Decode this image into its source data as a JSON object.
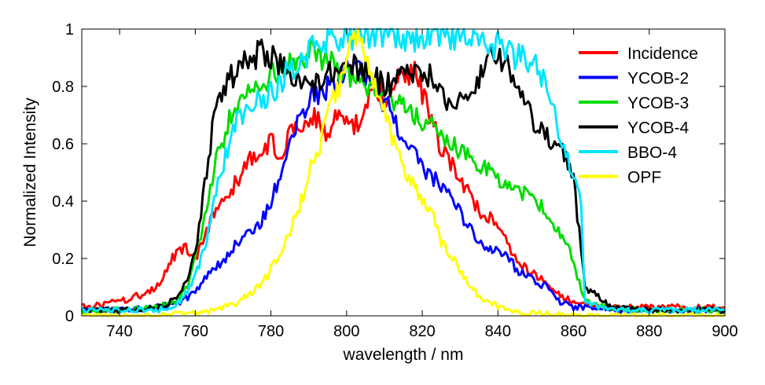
{
  "chart_data": {
    "type": "line",
    "title": "",
    "xlabel": "wavelength / nm",
    "ylabel": "Normalized Intensity",
    "xlim": [
      730,
      900
    ],
    "ylim": [
      0,
      1
    ],
    "x_ticks": [
      740,
      760,
      780,
      800,
      820,
      840,
      860,
      880,
      900
    ],
    "y_ticks": [
      0,
      0.2,
      0.4,
      0.6,
      0.8,
      1
    ],
    "y_tick_labels": [
      "0",
      "0.2",
      "0.4",
      "0.6",
      "0.8",
      "1"
    ],
    "grid": false,
    "legend_position": "top-right",
    "series": [
      {
        "name": "Incidence",
        "color": "#ff0000",
        "x": [
          730,
          735,
          740,
          745,
          750,
          753,
          755,
          757,
          760,
          763,
          765,
          768,
          770,
          773,
          775,
          778,
          780,
          783,
          785,
          788,
          790,
          793,
          795,
          798,
          800,
          803,
          805,
          808,
          810,
          813,
          815,
          818,
          820,
          823,
          825,
          828,
          830,
          833,
          835,
          838,
          840,
          843,
          845,
          848,
          850,
          853,
          855,
          858,
          860,
          863,
          865,
          870,
          880,
          890,
          900
        ],
        "y": [
          0.03,
          0.04,
          0.05,
          0.07,
          0.1,
          0.18,
          0.22,
          0.24,
          0.2,
          0.3,
          0.36,
          0.4,
          0.45,
          0.52,
          0.56,
          0.58,
          0.62,
          0.55,
          0.64,
          0.66,
          0.7,
          0.68,
          0.62,
          0.72,
          0.66,
          0.68,
          0.74,
          0.8,
          0.76,
          0.82,
          0.86,
          0.84,
          0.78,
          0.66,
          0.58,
          0.52,
          0.48,
          0.42,
          0.36,
          0.34,
          0.3,
          0.24,
          0.2,
          0.16,
          0.14,
          0.12,
          0.08,
          0.06,
          0.05,
          0.04,
          0.03,
          0.03,
          0.03,
          0.03,
          0.03
        ]
      },
      {
        "name": "YCOB-2",
        "color": "#0000ff",
        "x": [
          730,
          740,
          750,
          755,
          760,
          763,
          765,
          768,
          770,
          773,
          775,
          778,
          780,
          783,
          785,
          788,
          790,
          793,
          795,
          798,
          800,
          803,
          805,
          808,
          810,
          813,
          815,
          818,
          820,
          823,
          825,
          828,
          830,
          833,
          835,
          838,
          840,
          843,
          845,
          848,
          850,
          853,
          855,
          858,
          860,
          865,
          870,
          880,
          890,
          900
        ],
        "y": [
          0.02,
          0.02,
          0.03,
          0.04,
          0.08,
          0.14,
          0.16,
          0.2,
          0.24,
          0.28,
          0.3,
          0.34,
          0.4,
          0.52,
          0.62,
          0.7,
          0.76,
          0.78,
          0.8,
          0.82,
          0.86,
          0.88,
          0.84,
          0.8,
          0.74,
          0.68,
          0.62,
          0.58,
          0.52,
          0.48,
          0.44,
          0.4,
          0.36,
          0.3,
          0.26,
          0.24,
          0.22,
          0.2,
          0.16,
          0.14,
          0.12,
          0.1,
          0.06,
          0.04,
          0.03,
          0.03,
          0.02,
          0.02,
          0.02,
          0.02
        ]
      },
      {
        "name": "YCOB-3",
        "color": "#00dd00",
        "x": [
          730,
          740,
          750,
          755,
          758,
          760,
          763,
          765,
          768,
          770,
          773,
          775,
          778,
          780,
          783,
          785,
          788,
          790,
          793,
          795,
          798,
          800,
          803,
          805,
          808,
          810,
          813,
          815,
          818,
          820,
          823,
          825,
          828,
          830,
          833,
          835,
          838,
          840,
          843,
          845,
          848,
          850,
          853,
          855,
          858,
          860,
          863,
          870,
          880,
          890,
          900
        ],
        "y": [
          0.02,
          0.02,
          0.03,
          0.05,
          0.1,
          0.2,
          0.36,
          0.52,
          0.64,
          0.72,
          0.76,
          0.78,
          0.8,
          0.84,
          0.86,
          0.88,
          0.9,
          0.92,
          0.9,
          0.88,
          0.86,
          0.84,
          0.8,
          0.78,
          0.78,
          0.76,
          0.74,
          0.72,
          0.7,
          0.68,
          0.66,
          0.62,
          0.6,
          0.58,
          0.54,
          0.52,
          0.5,
          0.48,
          0.46,
          0.44,
          0.42,
          0.4,
          0.36,
          0.32,
          0.26,
          0.18,
          0.05,
          0.03,
          0.02,
          0.02,
          0.02
        ]
      },
      {
        "name": "YCOB-4",
        "color": "#000000",
        "x": [
          730,
          740,
          750,
          755,
          758,
          760,
          763,
          765,
          768,
          770,
          773,
          775,
          778,
          780,
          783,
          785,
          788,
          790,
          793,
          795,
          798,
          800,
          803,
          805,
          808,
          810,
          813,
          815,
          818,
          820,
          823,
          825,
          828,
          830,
          833,
          835,
          838,
          840,
          843,
          845,
          848,
          850,
          853,
          855,
          858,
          860,
          863,
          870,
          880,
          890,
          900
        ],
        "y": [
          0.02,
          0.02,
          0.03,
          0.06,
          0.12,
          0.22,
          0.5,
          0.7,
          0.8,
          0.84,
          0.88,
          0.9,
          0.92,
          0.9,
          0.86,
          0.84,
          0.82,
          0.8,
          0.82,
          0.84,
          0.86,
          0.88,
          0.86,
          0.84,
          0.82,
          0.8,
          0.82,
          0.84,
          0.86,
          0.86,
          0.82,
          0.76,
          0.74,
          0.74,
          0.78,
          0.84,
          0.9,
          0.92,
          0.86,
          0.8,
          0.72,
          0.66,
          0.62,
          0.6,
          0.56,
          0.48,
          0.1,
          0.03,
          0.02,
          0.02,
          0.02
        ]
      },
      {
        "name": "BBO-4",
        "color": "#00e5ff",
        "x": [
          730,
          740,
          750,
          755,
          758,
          760,
          763,
          765,
          768,
          770,
          773,
          775,
          778,
          780,
          783,
          785,
          788,
          790,
          793,
          795,
          798,
          800,
          805,
          810,
          815,
          820,
          825,
          830,
          835,
          840,
          843,
          845,
          848,
          850,
          853,
          855,
          858,
          860,
          862,
          863,
          870,
          880,
          890,
          900
        ],
        "y": [
          0.02,
          0.02,
          0.02,
          0.04,
          0.08,
          0.14,
          0.26,
          0.4,
          0.56,
          0.66,
          0.72,
          0.74,
          0.76,
          0.78,
          0.82,
          0.86,
          0.9,
          0.92,
          0.94,
          0.96,
          0.97,
          0.98,
          0.98,
          0.98,
          0.97,
          0.97,
          0.98,
          0.98,
          0.96,
          0.94,
          0.92,
          0.9,
          0.9,
          0.88,
          0.8,
          0.7,
          0.56,
          0.5,
          0.4,
          0.05,
          0.02,
          0.02,
          0.02,
          0.02
        ]
      },
      {
        "name": "OPF",
        "color": "#ffff00",
        "x": [
          730,
          750,
          760,
          765,
          770,
          775,
          778,
          780,
          783,
          785,
          788,
          790,
          793,
          795,
          798,
          800,
          803,
          805,
          808,
          810,
          813,
          815,
          818,
          820,
          823,
          825,
          828,
          830,
          833,
          835,
          838,
          840,
          845,
          850,
          860,
          870,
          880,
          890,
          900
        ],
        "y": [
          0.0,
          0.0,
          0.01,
          0.02,
          0.04,
          0.08,
          0.12,
          0.16,
          0.22,
          0.3,
          0.4,
          0.5,
          0.6,
          0.7,
          0.8,
          0.92,
          0.96,
          0.9,
          0.8,
          0.7,
          0.6,
          0.52,
          0.46,
          0.4,
          0.34,
          0.26,
          0.2,
          0.16,
          0.1,
          0.07,
          0.05,
          0.03,
          0.01,
          0.01,
          0.0,
          0.0,
          0.0,
          0.0,
          0.0
        ]
      }
    ]
  }
}
